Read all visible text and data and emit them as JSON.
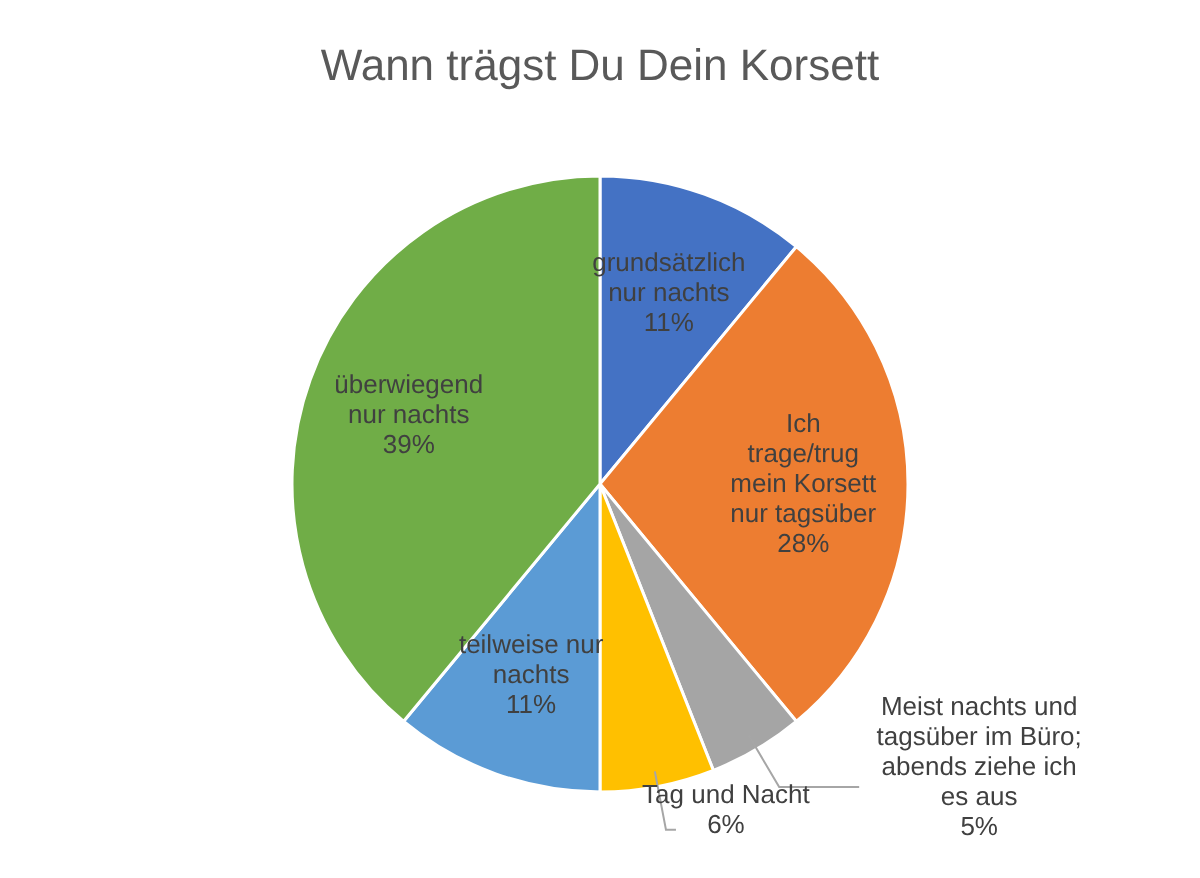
{
  "chart_data": {
    "type": "pie",
    "title": "Wann trägst Du Dein Korsett",
    "categories": [
      "grundsätzlich nur nachts",
      "Ich trage/trug mein Korsett nur tagsüber",
      "Meist nachts und tagsüber im Büro; abends ziehe ich es aus",
      "Tag und Nacht",
      "teilweise nur nachts",
      "überwiegend nur nachts"
    ],
    "values": [
      11,
      28,
      5,
      6,
      11,
      39
    ],
    "colors": [
      "#4472c4",
      "#ed7d31",
      "#a5a5a5",
      "#ffc000",
      "#5b9bd5",
      "#70ad47"
    ],
    "value_labels": [
      "11%",
      "28%",
      "5%",
      "6%",
      "11%",
      "39%"
    ]
  }
}
